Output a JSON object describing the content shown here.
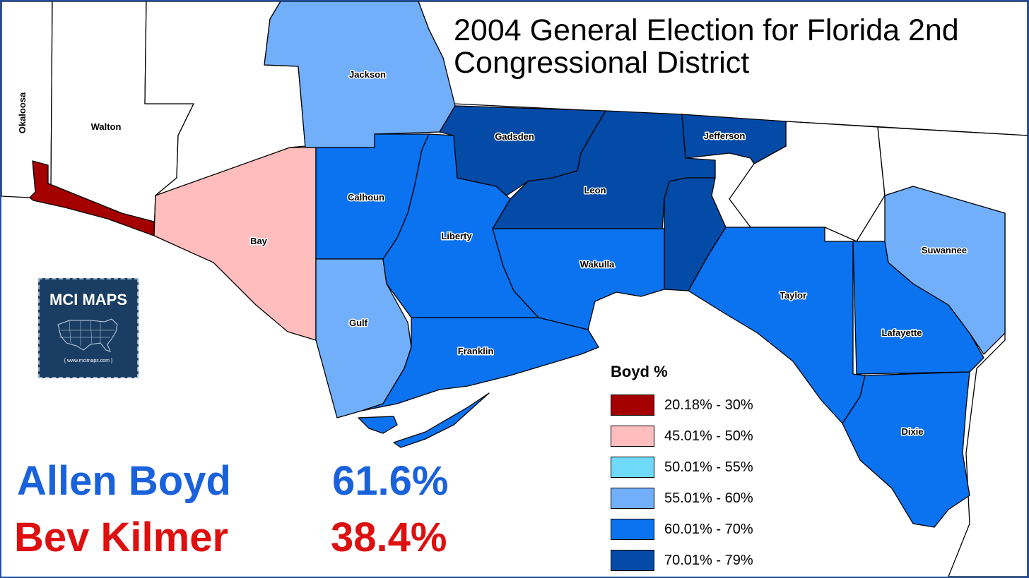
{
  "title": {
    "line1": "2004 General Election for Florida 2nd",
    "line2": "Congressional District"
  },
  "counties": {
    "okaloosa": "Okaloosa",
    "walton": "Walton",
    "jackson": "Jackson",
    "bay": "Bay",
    "calhoun": "Calhoun",
    "gulf": "Gulf",
    "liberty": "Liberty",
    "franklin": "Franklin",
    "gadsden": "Gadsden",
    "leon": "Leon",
    "jefferson": "Jefferson",
    "wakulla": "Wakulla",
    "taylor": "Taylor",
    "lafayette": "Lafayette",
    "suwannee": "Suwannee",
    "dixie": "Dixie"
  },
  "legend": {
    "title": "Boyd  %",
    "items": [
      {
        "label": "20.18% - 30%",
        "color": "#a50000"
      },
      {
        "label": "45.01% - 50%",
        "color": "#ffbdbd"
      },
      {
        "label": "50.01% - 55%",
        "color": "#6fd9fa"
      },
      {
        "label": "55.01% - 60%",
        "color": "#72affa"
      },
      {
        "label": "60.01% - 70%",
        "color": "#0b72f0"
      },
      {
        "label": "70.01% - 79%",
        "color": "#044ba8"
      }
    ]
  },
  "results": [
    {
      "name": "Allen Boyd",
      "pct": "61.6%",
      "color": "#1a62dc"
    },
    {
      "name": "Bev Kilmer",
      "pct": "38.4%",
      "color": "#dd0f0f"
    }
  ],
  "logo": {
    "text": "MCI MAPS",
    "url": "{ www.mcimaps.com }"
  },
  "county_fill": {
    "walton_coast": "#a50000",
    "bay": "#ffbdbd",
    "jackson": "#72affa",
    "gulf": "#72affa",
    "suwannee": "#72affa",
    "calhoun": "#0b72f0",
    "liberty": "#0b72f0",
    "franklin": "#0b72f0",
    "wakulla": "#0b72f0",
    "taylor": "#0b72f0",
    "lafayette": "#0b72f0",
    "dixie": "#0b72f0",
    "gadsden": "#044ba8",
    "leon": "#044ba8",
    "jefferson": "#044ba8"
  }
}
